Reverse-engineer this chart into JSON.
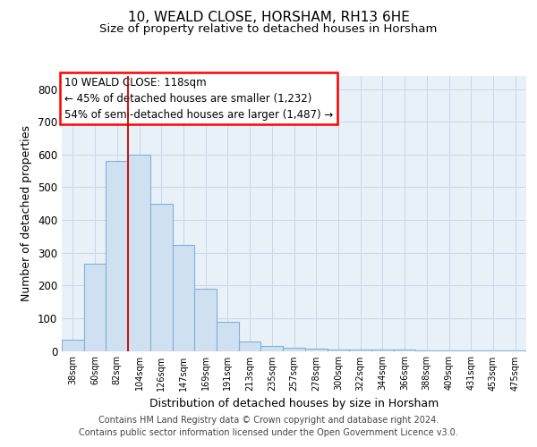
{
  "title1": "10, WEALD CLOSE, HORSHAM, RH13 6HE",
  "title2": "Size of property relative to detached houses in Horsham",
  "xlabel": "Distribution of detached houses by size in Horsham",
  "ylabel": "Number of detached properties",
  "categories": [
    "38sqm",
    "60sqm",
    "82sqm",
    "104sqm",
    "126sqm",
    "147sqm",
    "169sqm",
    "191sqm",
    "213sqm",
    "235sqm",
    "257sqm",
    "278sqm",
    "300sqm",
    "322sqm",
    "344sqm",
    "366sqm",
    "388sqm",
    "409sqm",
    "431sqm",
    "453sqm",
    "475sqm"
  ],
  "values": [
    35,
    265,
    580,
    600,
    450,
    325,
    190,
    90,
    30,
    15,
    10,
    8,
    5,
    4,
    4,
    3,
    2,
    1,
    1,
    1,
    1
  ],
  "bar_fill": "#cfe0f0",
  "bar_edge": "#7fb3d9",
  "vline_x": 2.5,
  "vline_color": "#cc0000",
  "annotation_text": "10 WEALD CLOSE: 118sqm\n← 45% of detached houses are smaller (1,232)\n54% of semi-detached houses are larger (1,487) →",
  "ylim": [
    0,
    840
  ],
  "yticks": [
    0,
    100,
    200,
    300,
    400,
    500,
    600,
    700,
    800
  ],
  "bg_color": "#e8f0f8",
  "grid_color": "#c8d8e8",
  "footer_line1": "Contains HM Land Registry data © Crown copyright and database right 2024.",
  "footer_line2": "Contains public sector information licensed under the Open Government Licence v3.0."
}
